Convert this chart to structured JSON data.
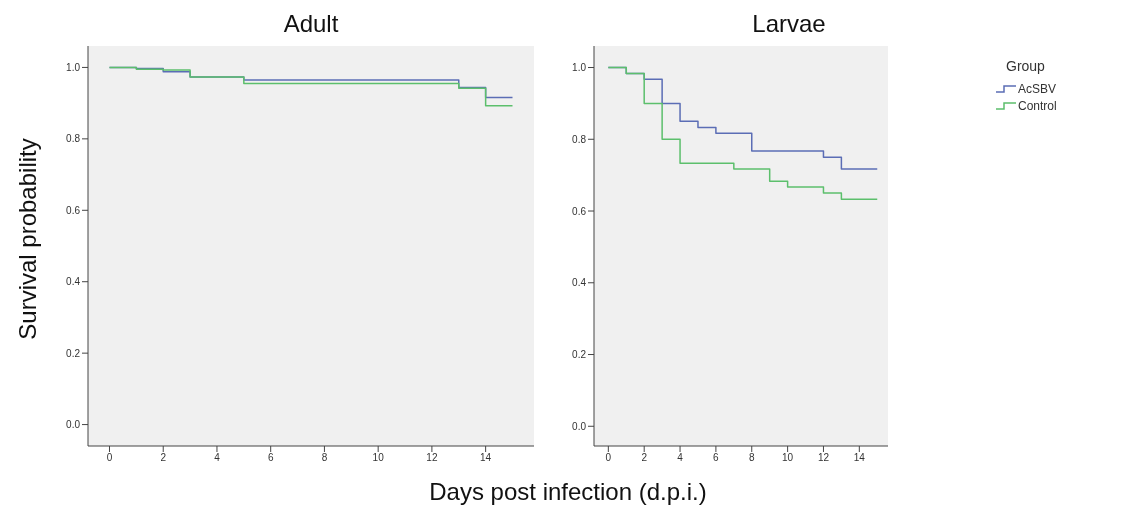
{
  "chart_data": [
    {
      "type": "step",
      "title": "Adult",
      "ylabel": "Survival probability",
      "xlabel": "Days post infection (d.p.i.)",
      "xlim": [
        -0.8,
        15.8
      ],
      "xticks": [
        0,
        2,
        4,
        6,
        8,
        10,
        12,
        14
      ],
      "ylim": [
        -0.06,
        1.06
      ],
      "yticks": [
        {
          "value": 0,
          "label": "0.0"
        },
        {
          "value": 0.2,
          "label": "0.2"
        },
        {
          "value": 0.4,
          "label": "0.4"
        },
        {
          "value": 0.6,
          "label": "0.6"
        },
        {
          "value": 0.8,
          "label": "0.8"
        },
        {
          "value": 1,
          "label": "1.0"
        }
      ],
      "grid": false,
      "legend": false,
      "series": [
        {
          "color": "#5b6db5",
          "x": [
            0,
            1,
            2,
            3,
            5,
            13,
            14,
            15
          ],
          "values": [
            1,
            0.997,
            0.988,
            0.973,
            0.965,
            0.944,
            0.916,
            0.916
          ]
        },
        {
          "color": "#5cbf6c",
          "x": [
            0,
            1,
            2,
            3,
            5,
            13,
            14,
            15
          ],
          "values": [
            1,
            0.995,
            0.993,
            0.973,
            0.955,
            0.942,
            0.893,
            0.893
          ]
        }
      ]
    },
    {
      "type": "step",
      "title": "Larvae",
      "legend_title": "Group",
      "xlim": [
        -0.8,
        15.6
      ],
      "xticks": [
        0,
        2,
        4,
        6,
        8,
        10,
        12,
        14
      ],
      "ylim": [
        -0.055,
        1.06
      ],
      "yticks": [
        {
          "value": 0,
          "label": "0.0"
        },
        {
          "value": 0.2,
          "label": "0.2"
        },
        {
          "value": 0.4,
          "label": "0.4"
        },
        {
          "value": 0.6,
          "label": "0.6"
        },
        {
          "value": 0.8,
          "label": "0.8"
        },
        {
          "value": 1,
          "label": "1.0"
        }
      ],
      "grid": false,
      "legend": "right",
      "series": [
        {
          "name": "AcSBV",
          "color": "#5b6db5",
          "x": [
            0,
            1,
            2,
            3,
            4,
            5,
            6,
            8,
            12,
            13,
            15
          ],
          "values": [
            1,
            0.983,
            0.967,
            0.9,
            0.85,
            0.833,
            0.817,
            0.767,
            0.75,
            0.717,
            0.717
          ]
        },
        {
          "name": "Control",
          "color": "#5cbf6c",
          "x": [
            0,
            1,
            2,
            3,
            4,
            7,
            9,
            10,
            12,
            13,
            15
          ],
          "values": [
            1,
            0.983,
            0.9,
            0.8,
            0.733,
            0.717,
            0.683,
            0.667,
            0.65,
            0.633,
            0.633
          ]
        }
      ]
    }
  ]
}
